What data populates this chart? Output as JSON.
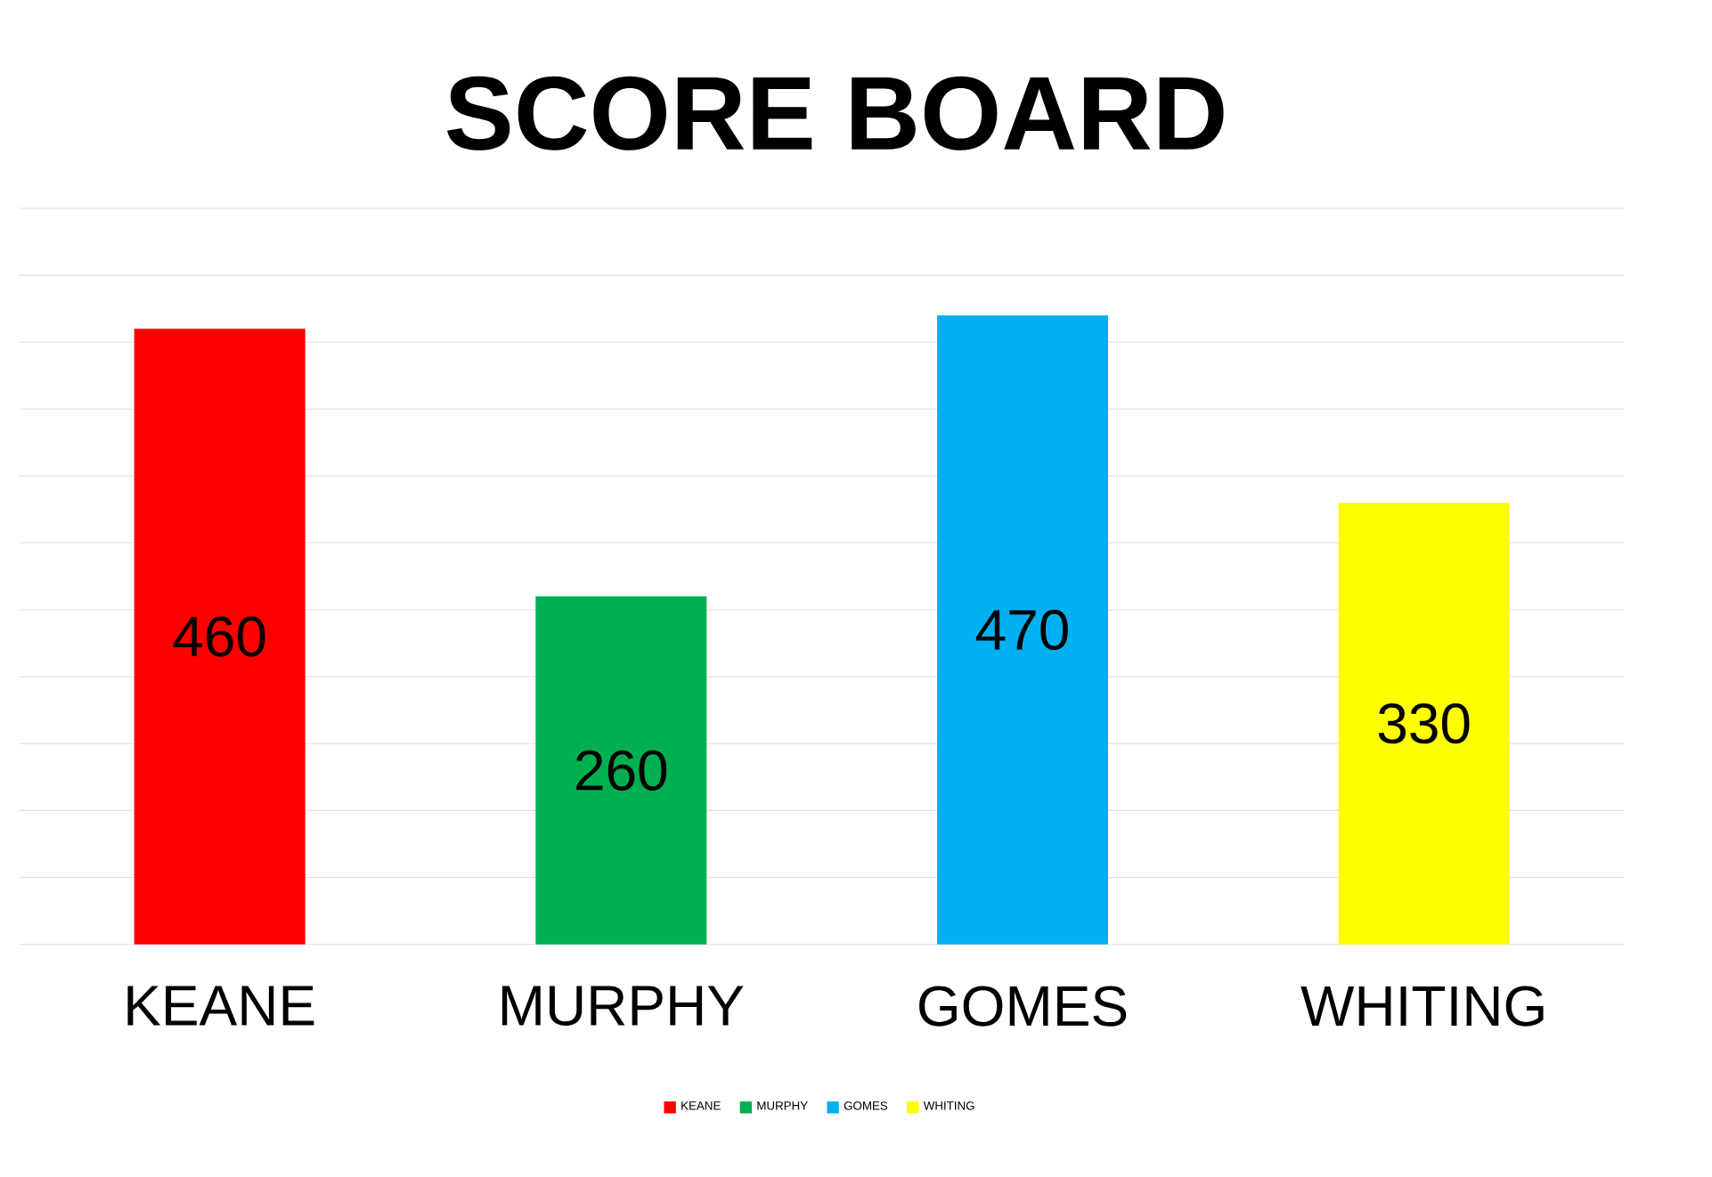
{
  "chart_data": {
    "type": "bar",
    "title": "SCORE BOARD",
    "categories": [
      "KEANE",
      "MURPHY",
      "GOMES",
      "WHITING"
    ],
    "series": [
      {
        "name": "KEANE",
        "color": "#ff0000",
        "values": [
          460,
          null,
          null,
          null
        ]
      },
      {
        "name": "MURPHY",
        "color": "#00b050",
        "values": [
          null,
          260,
          null,
          null
        ]
      },
      {
        "name": "GOMES",
        "color": "#00b0f0",
        "values": [
          null,
          null,
          470,
          null
        ]
      },
      {
        "name": "WHITING",
        "color": "#ffff00",
        "values": [
          null,
          null,
          null,
          330
        ]
      }
    ],
    "ylim": [
      0,
      550
    ],
    "yticks": [
      0,
      50,
      100,
      150,
      200,
      250,
      300,
      350,
      400,
      450,
      500,
      550
    ],
    "tick_labels": "x",
    "grid": "y",
    "legend": "bottom",
    "data_labels": true
  }
}
